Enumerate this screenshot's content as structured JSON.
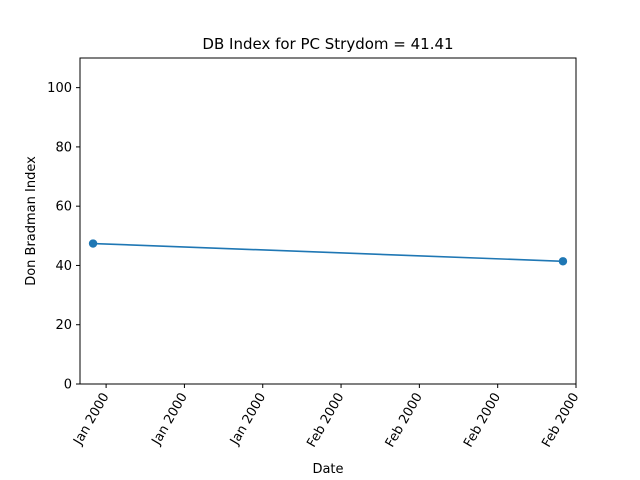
{
  "chart_data": {
    "type": "line",
    "title": "DB Index for PC Strydom = 41.41",
    "xlabel": "Date",
    "ylabel": "Don Bradman Index",
    "ylim": [
      0,
      110
    ],
    "yticks": [
      0,
      20,
      40,
      60,
      80,
      100
    ],
    "xlim": [
      "1999-12-28",
      "2000-02-04"
    ],
    "xticks": [
      {
        "date": "1999-12-30",
        "label": "Jan 2000"
      },
      {
        "date": "2000-01-05",
        "label": "Jan 2000"
      },
      {
        "date": "2000-01-11",
        "label": "Jan 2000"
      },
      {
        "date": "2000-01-17",
        "label": "Feb 2000"
      },
      {
        "date": "2000-01-23",
        "label": "Feb 2000"
      },
      {
        "date": "2000-01-29",
        "label": "Feb 2000"
      },
      {
        "date": "2000-02-04",
        "label": "Feb 2000"
      }
    ],
    "grid": false,
    "series": [
      {
        "color": "#1f77b4",
        "x": [
          "1999-12-29",
          "2000-02-03"
        ],
        "y": [
          47.4,
          41.41
        ]
      }
    ]
  }
}
